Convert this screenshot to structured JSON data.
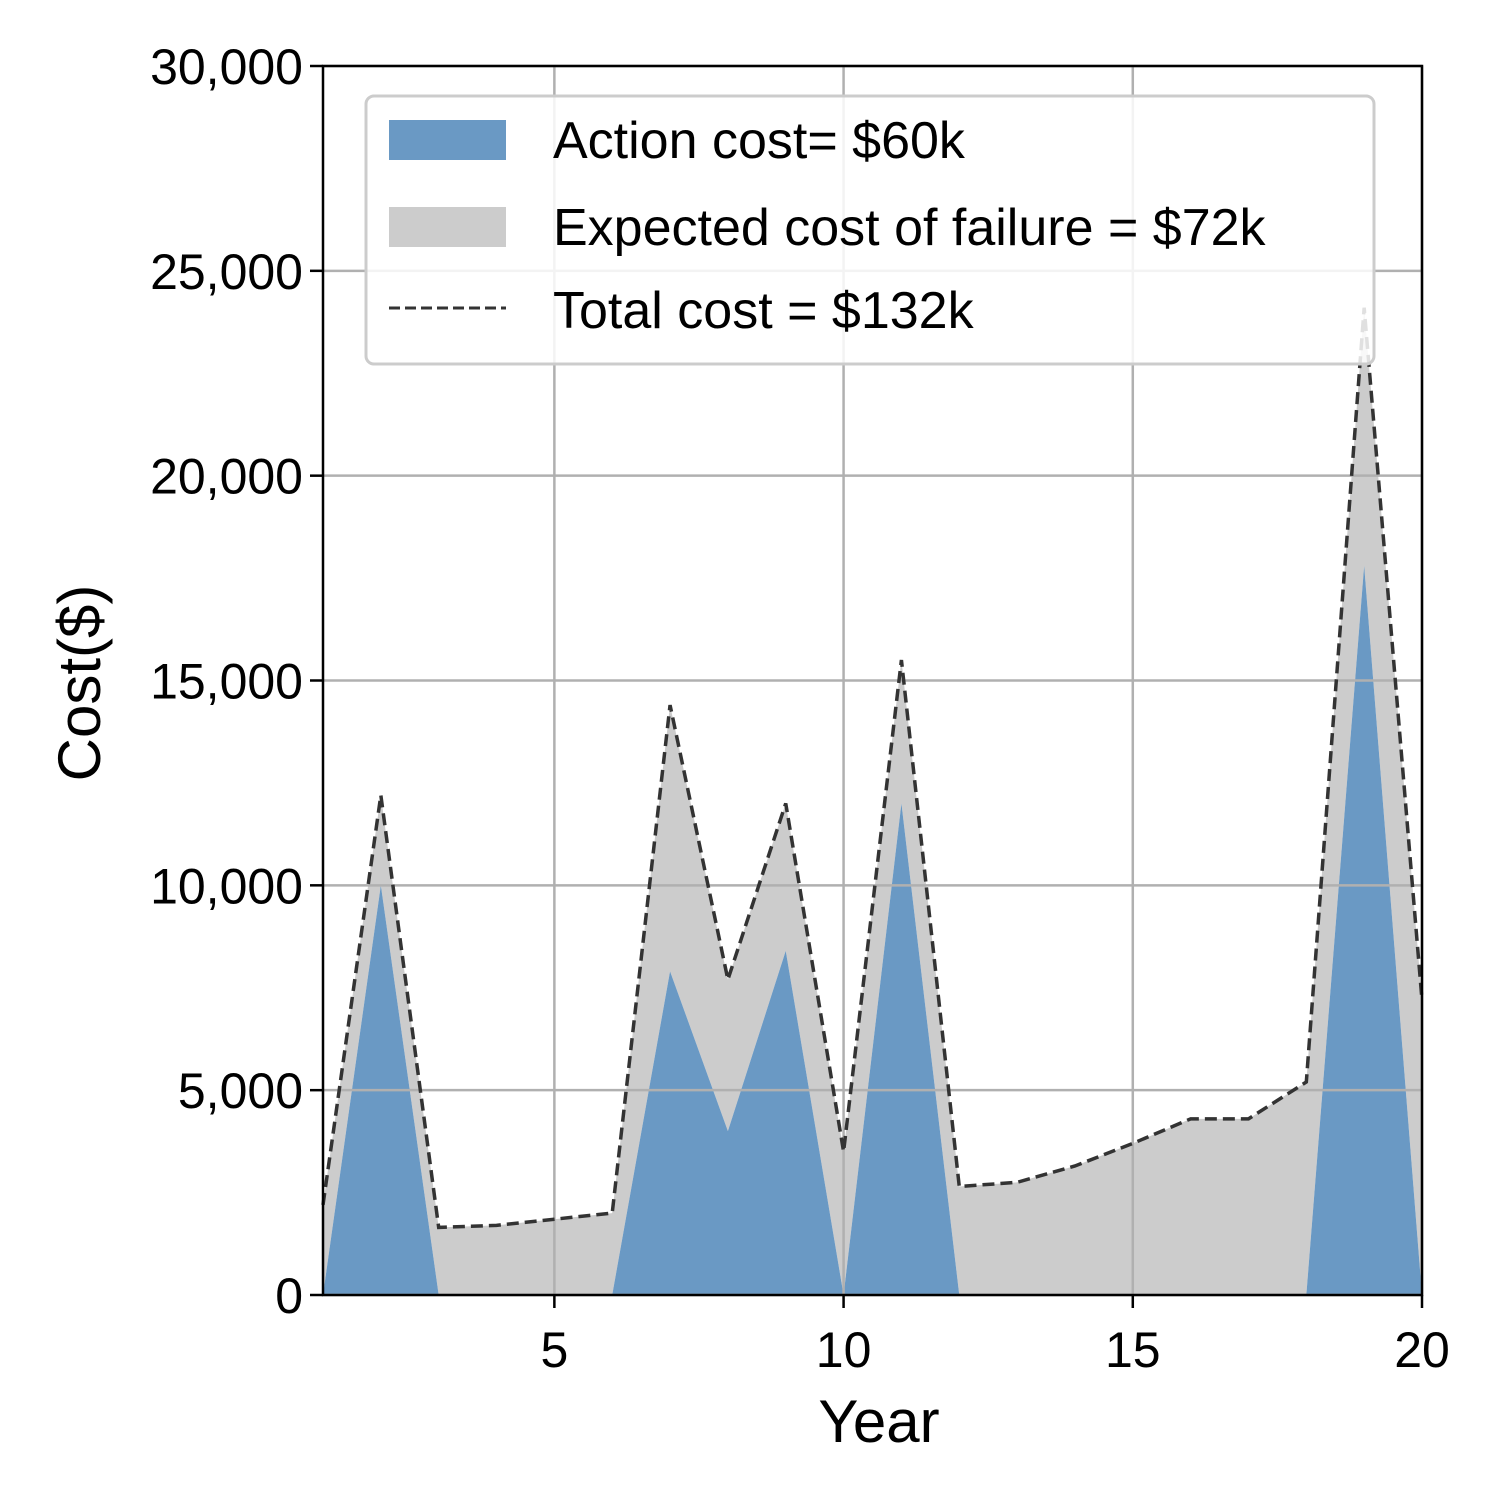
{
  "chart_data": {
    "type": "area",
    "xlabel": "Year",
    "ylabel": "Cost($)",
    "xlim": [
      1,
      20
    ],
    "ylim": [
      0,
      30000
    ],
    "xticks": [
      5,
      10,
      15,
      20
    ],
    "yticks": [
      0,
      5000,
      10000,
      15000,
      20000,
      25000,
      30000
    ],
    "xtick_labels": [
      "5",
      "10",
      "15",
      "20"
    ],
    "ytick_labels": [
      "0",
      "5,000",
      "10,000",
      "15,000",
      "20,000",
      "25,000",
      "30,000"
    ],
    "grid": true,
    "legend_position": "top-right",
    "x": [
      1,
      2,
      3,
      4,
      5,
      6,
      7,
      8,
      9,
      10,
      11,
      12,
      13,
      14,
      15,
      16,
      17,
      18,
      19,
      20
    ],
    "series": [
      {
        "name": "Action cost= $60k",
        "kind": "stacked-area",
        "color": "#6a99c4",
        "values": [
          0,
          10000,
          0,
          0,
          0,
          0,
          7900,
          4000,
          8400,
          0,
          12000,
          0,
          0,
          0,
          0,
          0,
          0,
          0,
          17800,
          0
        ]
      },
      {
        "name": "Expected cost of failure = $72k",
        "kind": "stacked-area",
        "color": "#cccccc",
        "values": [
          2200,
          2200,
          1650,
          1700,
          1850,
          2000,
          6500,
          3700,
          3600,
          3500,
          3500,
          2650,
          2750,
          3150,
          3700,
          4300,
          4300,
          5200,
          6300,
          7200
        ]
      },
      {
        "name": "Total cost = $132k",
        "kind": "dashed-line",
        "color": "#333333",
        "values": [
          2200,
          12200,
          1650,
          1700,
          1850,
          2000,
          14400,
          7700,
          12000,
          3500,
          15500,
          2650,
          2750,
          3150,
          3700,
          4300,
          4300,
          5200,
          24100,
          7200
        ]
      }
    ]
  }
}
